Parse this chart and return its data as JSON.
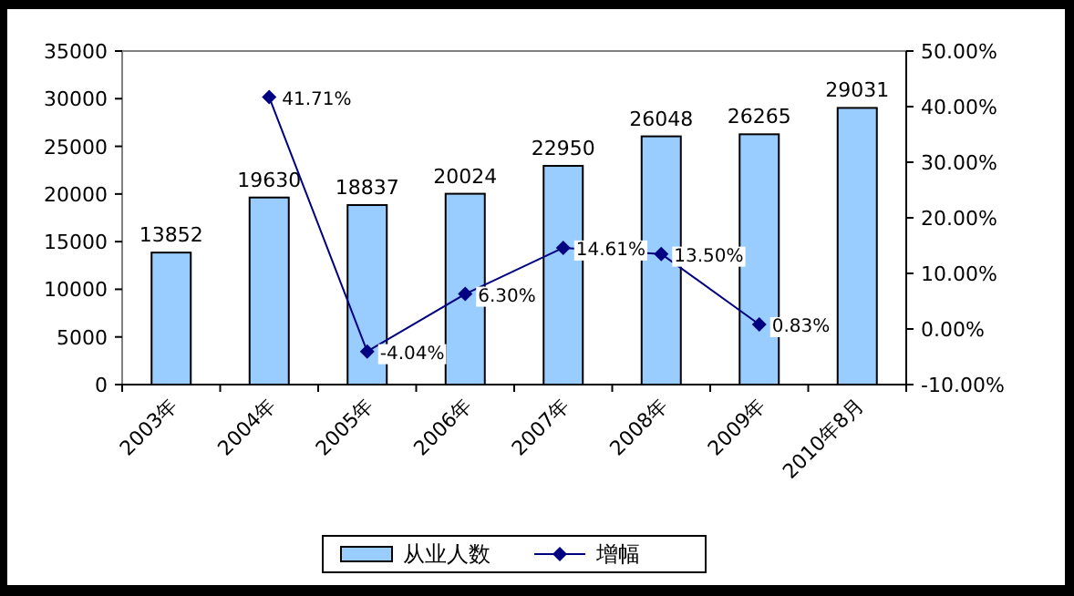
{
  "chart_data": {
    "type": "bar",
    "categories": [
      "2003年",
      "2004年",
      "2005年",
      "2006年",
      "2007年",
      "2008年",
      "2009年",
      "2010年8月"
    ],
    "series": [
      {
        "name": "从业人数",
        "color": "#99ccff",
        "values": [
          13852,
          19630,
          18837,
          20024,
          22950,
          26048,
          26265,
          29031
        ],
        "data_labels": true
      },
      {
        "name": "增幅",
        "type": "line",
        "axis": "y2",
        "color": "#000080",
        "marker": "diamond",
        "line_style": "solid",
        "values": [
          null,
          41.71,
          -4.04,
          6.3,
          14.61,
          13.5,
          0.83,
          null
        ],
        "value_labels": [
          null,
          "41.71%",
          "-4.04%",
          "6.30%",
          "14.61%",
          "13.50%",
          "0.83%",
          null
        ]
      }
    ],
    "ylim": [
      0,
      35000
    ],
    "yticks": [
      0,
      5000,
      10000,
      15000,
      20000,
      25000,
      30000,
      35000
    ],
    "y2lim": [
      -10,
      50
    ],
    "y2ticks": [
      {
        "value": -10,
        "label": "-10.00%"
      },
      {
        "value": 0,
        "label": "0.00%"
      },
      {
        "value": 10,
        "label": "10.00%"
      },
      {
        "value": 20,
        "label": "20.00%"
      },
      {
        "value": 30,
        "label": "30.00%"
      },
      {
        "value": 40,
        "label": "40.00%"
      },
      {
        "value": 50,
        "label": "50.00%"
      }
    ],
    "grid": false,
    "legend": "bottom"
  }
}
